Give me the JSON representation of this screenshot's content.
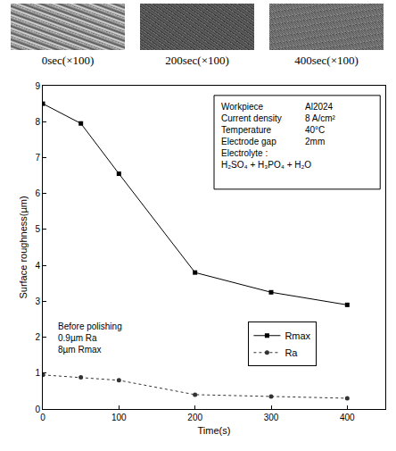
{
  "images": [
    {
      "caption": "0sec(×100)"
    },
    {
      "caption": "200sec(×100)"
    },
    {
      "caption": "400sec(×100)"
    }
  ],
  "chart_data": {
    "type": "line",
    "x_label": "Time(s)",
    "y_label": "Surface roughness(µm)",
    "x": [
      0,
      50,
      100,
      200,
      300,
      400
    ],
    "series": [
      {
        "name": "Rmax",
        "color": "#000000",
        "marker": "square",
        "line_style": "solid",
        "values": [
          8.5,
          7.95,
          6.55,
          3.8,
          3.25,
          2.9
        ]
      },
      {
        "name": "Ra",
        "color": "#333333",
        "marker": "circle",
        "line_style": "dot",
        "values": [
          0.95,
          0.88,
          0.8,
          0.4,
          0.35,
          0.3
        ]
      }
    ],
    "xlim": [
      0,
      450
    ],
    "xticks": [
      0,
      100,
      200,
      300,
      400
    ],
    "ylim": [
      0,
      9
    ],
    "yticks": [
      0,
      1,
      2,
      3,
      4,
      5,
      6,
      7,
      8,
      9
    ],
    "grid": false,
    "legend": "lower right",
    "info_box": [
      [
        "Workpiece",
        "Al2024"
      ],
      [
        "Current density",
        "8 A/cm²"
      ],
      [
        "Temperature",
        "40°C"
      ],
      [
        "Electrode gap",
        "2mm"
      ],
      [
        "Electrolyte :",
        null
      ],
      [
        "H₂SO₄ + H₃PO₄ + H₂O",
        null
      ]
    ],
    "note": [
      "Before polishing",
      "0.9µm Ra",
      "8µm Rmax"
    ]
  }
}
